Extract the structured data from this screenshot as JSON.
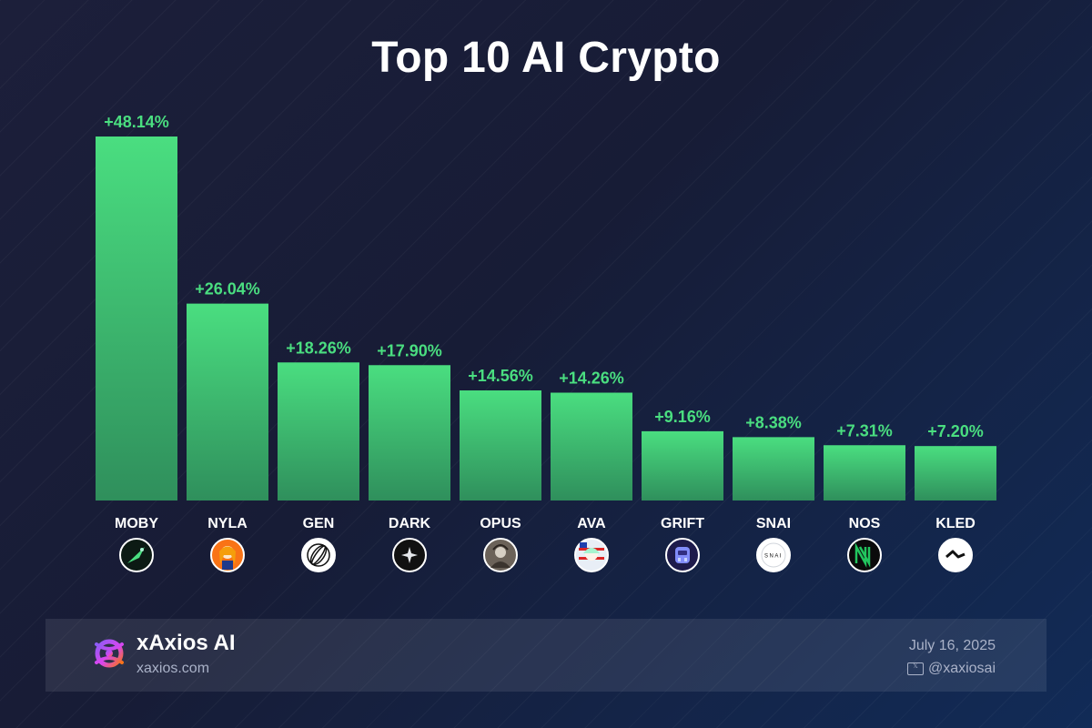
{
  "chart_data": {
    "type": "bar",
    "title": "Top 10 AI Crypto",
    "categories": [
      "MOBY",
      "NYLA",
      "GEN",
      "DARK",
      "OPUS",
      "AVA",
      "GRIFT",
      "SNAI",
      "NOS",
      "KLED"
    ],
    "values": [
      48.14,
      26.04,
      18.26,
      17.9,
      14.56,
      14.26,
      9.16,
      8.38,
      7.31,
      7.2
    ],
    "value_labels": [
      "+48.14%",
      "+26.04%",
      "+18.26%",
      "+17.90%",
      "+14.56%",
      "+14.26%",
      "+9.16%",
      "+8.38%",
      "+7.31%",
      "+7.20%"
    ],
    "icons": [
      "moby-fish-icon",
      "nyla-avatar-icon",
      "gen-globe-icon",
      "dark-star-icon",
      "opus-portrait-icon",
      "ava-avatar-icon",
      "grift-robot-icon",
      "snai-logo-icon",
      "nos-logo-icon",
      "kled-wave-icon"
    ],
    "ylim": [
      0,
      48.14
    ],
    "grid": false,
    "colors": {
      "bar_top": "#4ade80",
      "bar_bottom": "#2f8f5c",
      "label": "#4ade80"
    }
  },
  "footer": {
    "brand": "xAxios AI",
    "site": "xaxios.com",
    "date": "July 16, 2025",
    "handle": "@xaxiosai",
    "handle_icon": "x-icon",
    "logo_icon": "xaxios-logo-icon"
  }
}
